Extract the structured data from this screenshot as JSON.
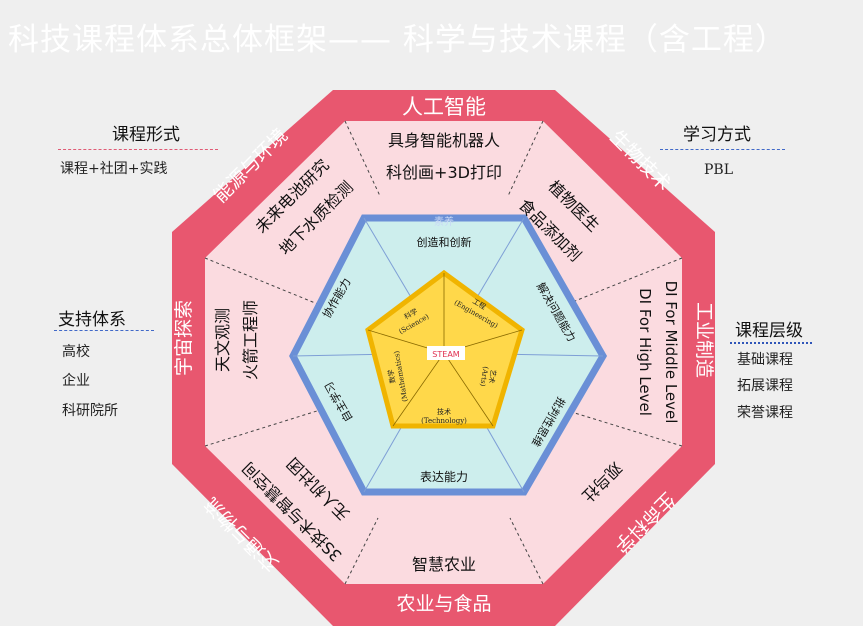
{
  "title": "科技课程体系总体框架—— 科学与技术课程（含工程）",
  "left_panels": {
    "course_form": {
      "heading": "课程形式",
      "text": "课程+社团+实践"
    },
    "support": {
      "heading": "支持体系",
      "items": [
        "高校",
        "企业",
        "科研院所"
      ]
    }
  },
  "right_panels": {
    "learning": {
      "heading": "学习方式",
      "text": "PBL"
    },
    "levels": {
      "heading": "课程层级",
      "items": [
        "基础课程",
        "拓展课程",
        "荣誉课程"
      ]
    }
  },
  "octagon": {
    "outer_labels": {
      "top": "人工智能",
      "top_right": "生物技术",
      "right": "工业制造",
      "bottom_right": "生命科学",
      "bottom": "农业与食品",
      "bottom_left": "交通与物流",
      "left": "宇宙探索",
      "top_left": "能源与环境"
    },
    "sectors": {
      "top": [
        "具身智能机器人",
        "科创画+3D打印"
      ],
      "top_right": [
        "植物医生",
        "食品添加剂"
      ],
      "right": [
        "DI For Middle Level",
        "DI For High Level"
      ],
      "bottom_right": [
        "观鸟社"
      ],
      "bottom": [
        "智慧农业"
      ],
      "bottom_left": [
        "无人机社团",
        "3S技术与智慧空间"
      ],
      "left": [
        "天文观测",
        "火箭工程师"
      ],
      "top_left": [
        "未来电池研究",
        "地下水质检测"
      ]
    }
  },
  "hexagon": {
    "tag": "素养",
    "labels": {
      "top": "创造和创新",
      "upper_right": "解决问题能力",
      "lower_right": "批判性思维",
      "bottom": "表达能力",
      "lower_left": "自主学习",
      "upper_left": "协作能力"
    }
  },
  "pentagon": {
    "center": "STEAM",
    "science": [
      "科学",
      "(Science)"
    ],
    "engineering": [
      "工程",
      "(Engineering)"
    ],
    "arts": [
      "艺术",
      "(Arts)"
    ],
    "technology": [
      "技术",
      "(Technology)"
    ],
    "mathematics": [
      "数学",
      "(Mathematics)"
    ]
  },
  "colors": {
    "outer_band": "#e8576f",
    "inner_pink": "#fbdbe0",
    "hex_fill": "#cdeeed",
    "hex_border": "#6a8fd6",
    "pentagon_fill": "#ffd84a",
    "pentagon_border": "#f0b400"
  }
}
